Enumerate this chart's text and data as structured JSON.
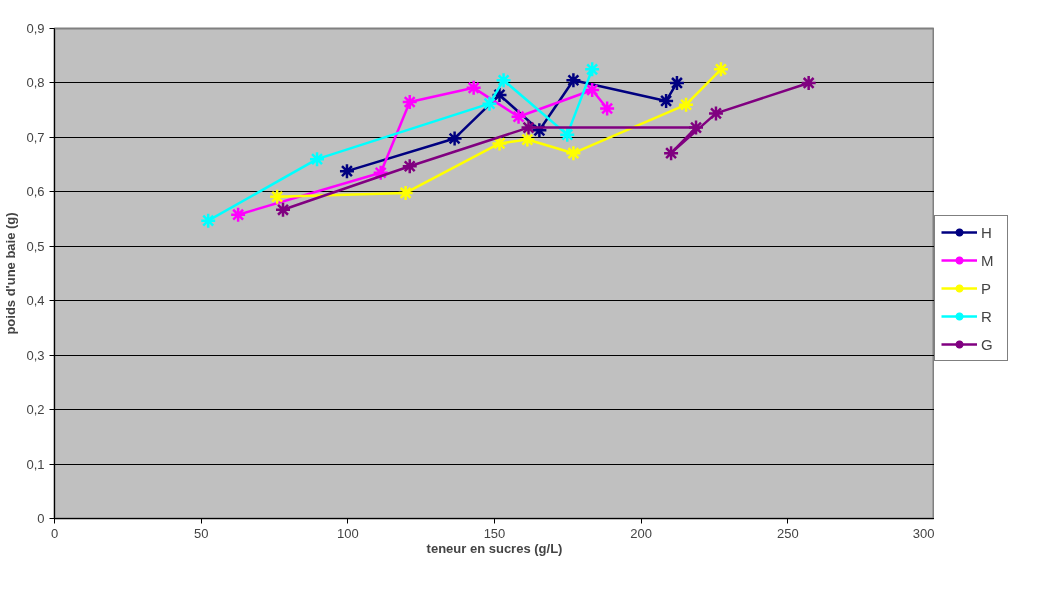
{
  "chart_data": {
    "type": "line",
    "xlabel": "teneur en sucres (g/L)",
    "ylabel": "poids d'une baie (g)",
    "xlim": [
      0,
      300
    ],
    "xticks": [
      0,
      50,
      100,
      150,
      200,
      250,
      300
    ],
    "ylim": [
      0,
      0.9
    ],
    "yticks": [
      {
        "value": 0,
        "label": "0"
      },
      {
        "value": 0.1,
        "label": "0,1"
      },
      {
        "value": 0.2,
        "label": "0,2"
      },
      {
        "value": 0.3,
        "label": "0,3"
      },
      {
        "value": 0.4,
        "label": "0,4"
      },
      {
        "value": 0.5,
        "label": "0,5"
      },
      {
        "value": 0.6,
        "label": "0,6"
      },
      {
        "value": 0.7,
        "label": "0,7"
      },
      {
        "value": 0.8,
        "label": "0,8"
      },
      {
        "value": 0.9,
        "label": "0,9"
      }
    ],
    "grid": "y",
    "legend": "right",
    "marker": "cross",
    "line_style": "solid",
    "series": [
      {
        "name": "H",
        "color": "#000080",
        "x": [
          99.7,
          136.4,
          151.7,
          165.3,
          176.9,
          208.5,
          212.2
        ],
        "values": [
          0.638,
          0.698,
          0.778,
          0.713,
          0.805,
          0.767,
          0.8
        ]
      },
      {
        "name": "M",
        "color": "#ff00ff",
        "x": [
          62.6,
          111.2,
          121.1,
          142.9,
          158.2,
          183.3,
          188.4
        ],
        "values": [
          0.558,
          0.635,
          0.765,
          0.791,
          0.738,
          0.787,
          0.753
        ]
      },
      {
        "name": "P",
        "color": "#ffff00",
        "x": [
          75.9,
          119.7,
          151.7,
          161.2,
          176.9,
          215.3,
          227.2
        ],
        "values": [
          0.591,
          0.598,
          0.689,
          0.696,
          0.671,
          0.76,
          0.825
        ]
      },
      {
        "name": "R",
        "color": "#00ffff",
        "x": [
          52.4,
          89.5,
          148.3,
          153.1,
          174.8,
          183.3
        ],
        "values": [
          0.547,
          0.66,
          0.762,
          0.805,
          0.705,
          0.825
        ]
      },
      {
        "name": "G",
        "color": "#800080",
        "x": [
          77.9,
          121.1,
          161.6,
          218.7,
          210.2,
          225.5,
          257.1
        ],
        "values": [
          0.567,
          0.647,
          0.718,
          0.718,
          0.671,
          0.744,
          0.8
        ]
      }
    ]
  }
}
